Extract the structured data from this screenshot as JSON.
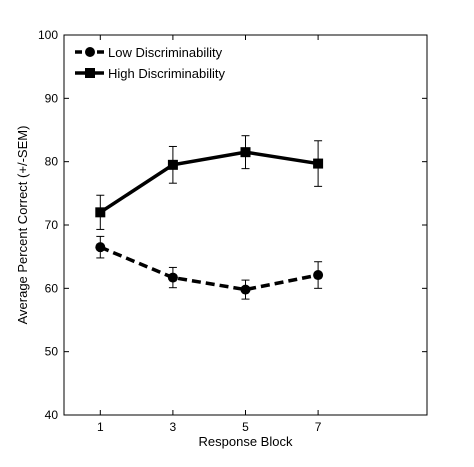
{
  "chart_data": {
    "type": "line",
    "xlabel": "Response Block",
    "ylabel": "Average Percent Correct (+/-SEM)",
    "xlim": [
      0,
      10
    ],
    "ylim": [
      40,
      100
    ],
    "xticks": [
      1,
      3,
      5,
      7
    ],
    "yticks": [
      40,
      50,
      60,
      70,
      80,
      90,
      100
    ],
    "grid": false,
    "legend_position": "top-left",
    "series": [
      {
        "name": "Low Discriminability",
        "line_style": "dashed",
        "marker": "circle",
        "color": "#000000",
        "x": [
          1,
          3,
          5,
          7
        ],
        "y": [
          66.5,
          61.7,
          59.8,
          62.1
        ],
        "sem": [
          1.7,
          1.6,
          1.5,
          2.1
        ]
      },
      {
        "name": "High Discriminability",
        "line_style": "solid",
        "marker": "square",
        "color": "#000000",
        "x": [
          1,
          3,
          5,
          7
        ],
        "y": [
          72.0,
          79.5,
          81.5,
          79.7
        ],
        "sem": [
          2.7,
          2.9,
          2.6,
          3.6
        ]
      }
    ]
  }
}
